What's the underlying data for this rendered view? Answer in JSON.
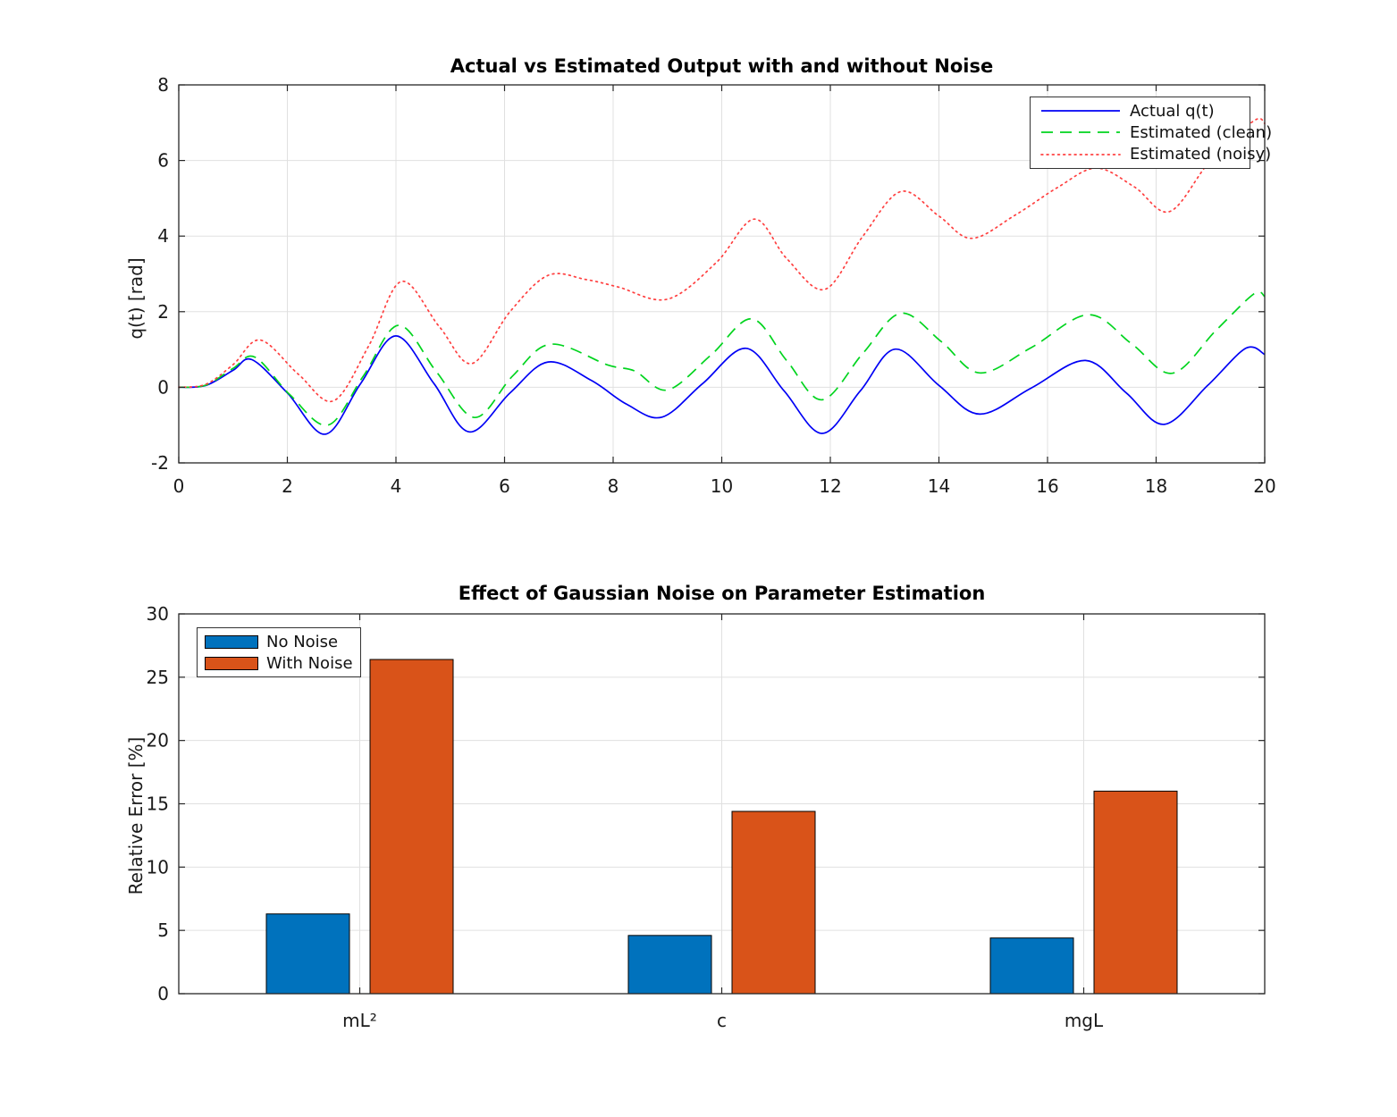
{
  "figure": {
    "background": "#ffffff"
  },
  "chart_data": [
    {
      "type": "line",
      "title": "Actual vs Estimated Output with and without Noise",
      "xlabel": "",
      "ylabel": "q(t) [rad]",
      "xlim": [
        0,
        20
      ],
      "ylim": [
        -2,
        8
      ],
      "xticks": [
        0,
        2,
        4,
        6,
        8,
        10,
        12,
        14,
        16,
        18,
        20
      ],
      "yticks": [
        -2,
        0,
        2,
        4,
        6,
        8
      ],
      "grid": true,
      "legend_position": "top-right",
      "series": [
        {
          "name": "Actual q(t)",
          "color": "#0000f5",
          "dash": "solid",
          "points": [
            [
              0,
              0
            ],
            [
              0.5,
              0.05
            ],
            [
              1.0,
              0.45
            ],
            [
              1.35,
              0.73
            ],
            [
              2.0,
              -0.15
            ],
            [
              2.7,
              -1.24
            ],
            [
              3.35,
              0.1
            ],
            [
              4.0,
              1.36
            ],
            [
              4.7,
              0.1
            ],
            [
              5.35,
              -1.18
            ],
            [
              6.1,
              -0.15
            ],
            [
              6.8,
              0.67
            ],
            [
              7.6,
              0.18
            ],
            [
              8.25,
              -0.45
            ],
            [
              8.9,
              -0.79
            ],
            [
              9.65,
              0.1
            ],
            [
              10.45,
              1.03
            ],
            [
              11.15,
              -0.1
            ],
            [
              11.85,
              -1.22
            ],
            [
              12.55,
              -0.1
            ],
            [
              13.2,
              1.01
            ],
            [
              14.0,
              0.05
            ],
            [
              14.75,
              -0.71
            ],
            [
              15.7,
              -0.02
            ],
            [
              16.7,
              0.71
            ],
            [
              17.45,
              -0.15
            ],
            [
              18.15,
              -0.98
            ],
            [
              18.95,
              0.05
            ],
            [
              19.65,
              1.03
            ],
            [
              20,
              0.87
            ]
          ]
        },
        {
          "name": "Estimated (clean)",
          "color": "#00d41e",
          "dash": "dashed",
          "points": [
            [
              0,
              0
            ],
            [
              0.5,
              0.06
            ],
            [
              1.0,
              0.5
            ],
            [
              1.4,
              0.8
            ],
            [
              2.05,
              -0.2
            ],
            [
              2.75,
              -1.0
            ],
            [
              3.4,
              0.3
            ],
            [
              4.05,
              1.64
            ],
            [
              4.75,
              0.4
            ],
            [
              5.45,
              -0.8
            ],
            [
              6.15,
              0.3
            ],
            [
              6.85,
              1.14
            ],
            [
              7.9,
              0.59
            ],
            [
              8.4,
              0.43
            ],
            [
              9.0,
              -0.07
            ],
            [
              9.8,
              0.85
            ],
            [
              10.55,
              1.81
            ],
            [
              11.2,
              0.7
            ],
            [
              11.85,
              -0.33
            ],
            [
              12.6,
              0.9
            ],
            [
              13.3,
              1.96
            ],
            [
              14.05,
              1.2
            ],
            [
              14.75,
              0.38
            ],
            [
              15.7,
              1.05
            ],
            [
              16.75,
              1.92
            ],
            [
              17.55,
              1.15
            ],
            [
              18.3,
              0.37
            ],
            [
              19.1,
              1.5
            ],
            [
              19.8,
              2.47
            ],
            [
              20,
              2.4
            ]
          ]
        },
        {
          "name": "Estimated (noisy)",
          "color": "#ff4040",
          "dash": "dotted",
          "points": [
            [
              0,
              0
            ],
            [
              0.5,
              0.08
            ],
            [
              1.0,
              0.6
            ],
            [
              1.5,
              1.25
            ],
            [
              2.2,
              0.35
            ],
            [
              2.85,
              -0.36
            ],
            [
              3.5,
              1.1
            ],
            [
              4.1,
              2.8
            ],
            [
              4.8,
              1.6
            ],
            [
              5.4,
              0.63
            ],
            [
              6.1,
              2.0
            ],
            [
              6.8,
              2.96
            ],
            [
              7.5,
              2.85
            ],
            [
              8.1,
              2.65
            ],
            [
              9.0,
              2.33
            ],
            [
              9.9,
              3.3
            ],
            [
              10.6,
              4.45
            ],
            [
              11.2,
              3.4
            ],
            [
              11.9,
              2.59
            ],
            [
              12.6,
              4.0
            ],
            [
              13.3,
              5.18
            ],
            [
              14.0,
              4.53
            ],
            [
              14.6,
              3.94
            ],
            [
              15.4,
              4.55
            ],
            [
              16.2,
              5.3
            ],
            [
              16.9,
              5.8
            ],
            [
              17.6,
              5.3
            ],
            [
              18.25,
              4.65
            ],
            [
              19.0,
              6.0
            ],
            [
              19.8,
              7.05
            ],
            [
              20,
              6.98
            ]
          ]
        }
      ]
    },
    {
      "type": "bar",
      "title": "Effect of Gaussian Noise on Parameter Estimation",
      "xlabel": "",
      "ylabel": "Relative Error [%]",
      "categories": [
        "mL²",
        "c",
        "mgL"
      ],
      "ylim": [
        0,
        30
      ],
      "yticks": [
        0,
        5,
        10,
        15,
        20,
        25,
        30
      ],
      "grid": true,
      "legend_position": "top-left",
      "series": [
        {
          "name": "No Noise",
          "color": "#0072BD",
          "values": [
            6.3,
            4.6,
            4.4
          ]
        },
        {
          "name": "With Noise",
          "color": "#D95319",
          "values": [
            26.4,
            14.4,
            16.0
          ]
        }
      ]
    }
  ]
}
